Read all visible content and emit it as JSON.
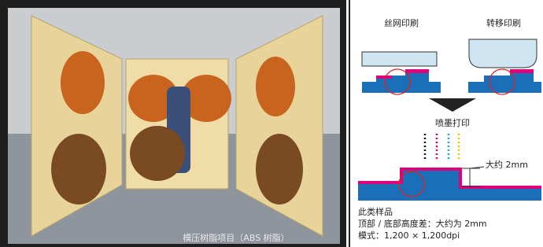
{
  "photo": {
    "caption": "模压树脂项目（ABS 树脂）"
  },
  "diagram": {
    "screen_printing": "丝网印刷",
    "transfer_printing": "转移印刷",
    "inkjet_printing": "喷墨打印",
    "height_label": "大约 2mm"
  },
  "notes": {
    "heading": "此类样品",
    "height_difference": "顶部 / 底部高度差：大约为 2mm",
    "resolution": "模式：1,200 × 1,200dpi"
  }
}
